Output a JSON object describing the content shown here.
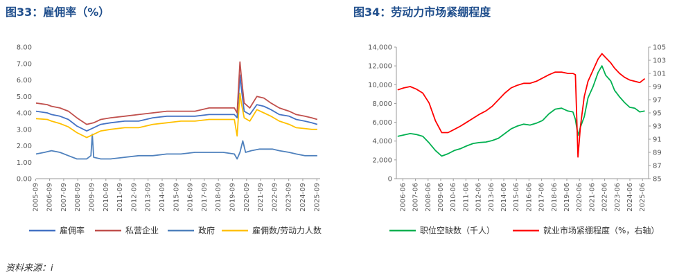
{
  "source": "资料来源：i",
  "chart_data": [
    {
      "type": "line",
      "title": "图33：雇佣率（%）",
      "ylim": [
        0,
        8
      ],
      "yticks": [
        "0.00",
        "1.00",
        "2.00",
        "3.00",
        "4.00",
        "5.00",
        "6.00",
        "7.00",
        "8.00"
      ],
      "xticks": [
        "2005-09",
        "2006-09",
        "2007-09",
        "2008-09",
        "2009-09",
        "2010-09",
        "2011-09",
        "2012-09",
        "2013-09",
        "2014-09",
        "2015-09",
        "2016-09",
        "2017-09",
        "2018-09",
        "2019-09",
        "2020-09",
        "2021-09",
        "2022-09",
        "2023-09",
        "2024-09",
        "2025-09"
      ],
      "series": [
        {
          "name": "雇佣率",
          "color": "#4472c4",
          "x": [
            2005.7,
            2006.5,
            2006.8,
            2007.4,
            2008.0,
            2008.6,
            2009.3,
            2009.8,
            2010.3,
            2011.0,
            2012.0,
            2013.0,
            2014.0,
            2015.0,
            2016.0,
            2017.0,
            2018.0,
            2019.0,
            2019.8,
            2020.0,
            2020.2,
            2020.3,
            2020.5,
            2020.9,
            2021.4,
            2021.9,
            2022.4,
            2023.0,
            2023.7,
            2024.2,
            2024.8,
            2025.3,
            2025.7
          ],
          "y": [
            4.1,
            4.0,
            3.9,
            3.8,
            3.6,
            3.2,
            2.9,
            3.1,
            3.3,
            3.4,
            3.5,
            3.5,
            3.7,
            3.8,
            3.8,
            3.8,
            3.9,
            3.9,
            3.9,
            3.7,
            6.3,
            5.5,
            4.1,
            3.9,
            4.5,
            4.4,
            4.2,
            3.9,
            3.8,
            3.6,
            3.5,
            3.4,
            3.3
          ]
        },
        {
          "name": "私营企业",
          "color": "#c0504d",
          "x": [
            2005.7,
            2006.5,
            2006.8,
            2007.4,
            2008.0,
            2008.6,
            2009.3,
            2009.8,
            2010.3,
            2011.0,
            2012.0,
            2013.0,
            2014.0,
            2015.0,
            2016.0,
            2017.0,
            2018.0,
            2019.0,
            2019.8,
            2020.0,
            2020.2,
            2020.3,
            2020.5,
            2020.9,
            2021.4,
            2021.9,
            2022.4,
            2023.0,
            2023.7,
            2024.2,
            2024.8,
            2025.3,
            2025.7
          ],
          "y": [
            4.6,
            4.5,
            4.4,
            4.3,
            4.1,
            3.7,
            3.3,
            3.4,
            3.6,
            3.7,
            3.8,
            3.9,
            4.0,
            4.1,
            4.1,
            4.1,
            4.3,
            4.3,
            4.3,
            4.0,
            7.1,
            6.2,
            4.6,
            4.3,
            5.0,
            4.9,
            4.6,
            4.3,
            4.1,
            3.9,
            3.8,
            3.7,
            3.6
          ]
        },
        {
          "name": "政府",
          "color": "#4f81bd",
          "x": [
            2005.7,
            2006.3,
            2006.8,
            2007.4,
            2008.0,
            2008.6,
            2009.3,
            2009.6,
            2009.7,
            2009.8,
            2010.3,
            2011.0,
            2012.0,
            2013.0,
            2014.0,
            2015.0,
            2016.0,
            2017.0,
            2018.0,
            2019.0,
            2019.8,
            2020.0,
            2020.2,
            2020.4,
            2020.6,
            2021.0,
            2021.6,
            2022.0,
            2022.5,
            2023.0,
            2023.7,
            2024.2,
            2024.8,
            2025.3,
            2025.7
          ],
          "y": [
            1.5,
            1.6,
            1.7,
            1.6,
            1.4,
            1.2,
            1.2,
            1.4,
            2.7,
            1.3,
            1.2,
            1.2,
            1.3,
            1.4,
            1.4,
            1.5,
            1.5,
            1.6,
            1.6,
            1.6,
            1.5,
            1.2,
            1.6,
            2.3,
            1.6,
            1.7,
            1.8,
            1.8,
            1.8,
            1.7,
            1.6,
            1.5,
            1.4,
            1.4,
            1.4
          ]
        },
        {
          "name": "雇佣数/劳动力人数",
          "color": "#ffc000",
          "x": [
            2005.7,
            2006.5,
            2006.8,
            2007.4,
            2008.0,
            2008.6,
            2009.3,
            2009.8,
            2010.3,
            2011.0,
            2012.0,
            2013.0,
            2014.0,
            2015.0,
            2016.0,
            2017.0,
            2018.0,
            2019.0,
            2019.8,
            2020.0,
            2020.2,
            2020.3,
            2020.5,
            2020.9,
            2021.4,
            2021.9,
            2022.4,
            2023.0,
            2023.7,
            2024.2,
            2024.8,
            2025.3,
            2025.7
          ],
          "y": [
            3.65,
            3.6,
            3.5,
            3.35,
            3.15,
            2.8,
            2.5,
            2.7,
            2.9,
            3.0,
            3.1,
            3.1,
            3.3,
            3.4,
            3.5,
            3.5,
            3.6,
            3.6,
            3.6,
            2.6,
            5.2,
            4.6,
            3.7,
            3.5,
            4.2,
            4.0,
            3.8,
            3.5,
            3.3,
            3.1,
            3.05,
            3.0,
            3.0
          ]
        }
      ]
    },
    {
      "type": "line",
      "title": "图34：劳动力市场紧绷程度",
      "ylim": [
        0,
        14000
      ],
      "y2lim": [
        85,
        105
      ],
      "yticks": [
        "0",
        "2,000",
        "4,000",
        "6,000",
        "8,000",
        "10,000",
        "12,000",
        "14,000"
      ],
      "y2ticks": [
        "85",
        "87",
        "89",
        "91",
        "93",
        "95",
        "97",
        "99",
        "101",
        "103",
        "105"
      ],
      "xticks": [
        "2006-06",
        "2007-06",
        "2008-06",
        "2009-06",
        "2010-06",
        "2011-06",
        "2012-06",
        "2013-06",
        "2014-06",
        "2015-06",
        "2016-06",
        "2017-06",
        "2018-06",
        "2019-06",
        "2020-06",
        "2021-06",
        "2022-06",
        "2023-06",
        "2024-06",
        "2025-06"
      ],
      "series": [
        {
          "name": "职位空缺数（千人）",
          "color": "#00b050",
          "axis": "left",
          "x": [
            2006.0,
            2006.5,
            2007.0,
            2007.5,
            2008.0,
            2008.5,
            2009.0,
            2009.5,
            2010.0,
            2010.5,
            2011.0,
            2011.5,
            2012.0,
            2012.5,
            2013.0,
            2013.5,
            2014.0,
            2014.5,
            2015.0,
            2015.5,
            2016.0,
            2016.5,
            2017.0,
            2017.5,
            2018.0,
            2018.5,
            2019.0,
            2019.5,
            2019.9,
            2020.1,
            2020.3,
            2020.5,
            2020.8,
            2021.1,
            2021.5,
            2021.9,
            2022.2,
            2022.5,
            2022.9,
            2023.2,
            2023.6,
            2024.0,
            2024.4,
            2024.8,
            2025.2,
            2025.6
          ],
          "y": [
            4500,
            4650,
            4800,
            4700,
            4500,
            3800,
            3000,
            2400,
            2650,
            3000,
            3200,
            3500,
            3750,
            3850,
            3900,
            4050,
            4300,
            4800,
            5300,
            5600,
            5800,
            5700,
            5900,
            6200,
            6900,
            7400,
            7500,
            7200,
            7100,
            6300,
            4600,
            5500,
            6600,
            8600,
            9800,
            11300,
            12000,
            11000,
            10400,
            9400,
            8700,
            8100,
            7600,
            7500,
            7100,
            7200
          ]
        },
        {
          "name": "就业市场紧绷程度（%，右轴）",
          "color": "#ff0000",
          "axis": "right",
          "x": [
            2006.0,
            2006.5,
            2007.0,
            2007.5,
            2008.0,
            2008.5,
            2009.0,
            2009.5,
            2010.0,
            2010.5,
            2011.0,
            2011.5,
            2012.0,
            2012.5,
            2013.0,
            2013.5,
            2014.0,
            2014.5,
            2015.0,
            2015.5,
            2016.0,
            2016.5,
            2017.0,
            2017.5,
            2018.0,
            2018.5,
            2019.0,
            2019.5,
            2019.9,
            2020.1,
            2020.3,
            2020.5,
            2020.8,
            2021.1,
            2021.5,
            2021.9,
            2022.2,
            2022.5,
            2022.9,
            2023.2,
            2023.6,
            2024.0,
            2024.4,
            2024.8,
            2025.2,
            2025.6
          ],
          "y": [
            98.5,
            98.8,
            99.0,
            98.6,
            98.0,
            96.5,
            93.8,
            92.0,
            92.0,
            92.5,
            93.0,
            93.6,
            94.2,
            94.8,
            95.3,
            96.0,
            97.0,
            98.0,
            98.8,
            99.2,
            99.5,
            99.5,
            99.8,
            100.3,
            100.8,
            101.2,
            101.2,
            101.0,
            101.0,
            100.8,
            88.3,
            93.0,
            97.5,
            99.8,
            101.5,
            103.2,
            104.0,
            103.4,
            102.6,
            101.8,
            101.0,
            100.4,
            100.0,
            99.8,
            99.6,
            100.2
          ]
        }
      ]
    }
  ]
}
